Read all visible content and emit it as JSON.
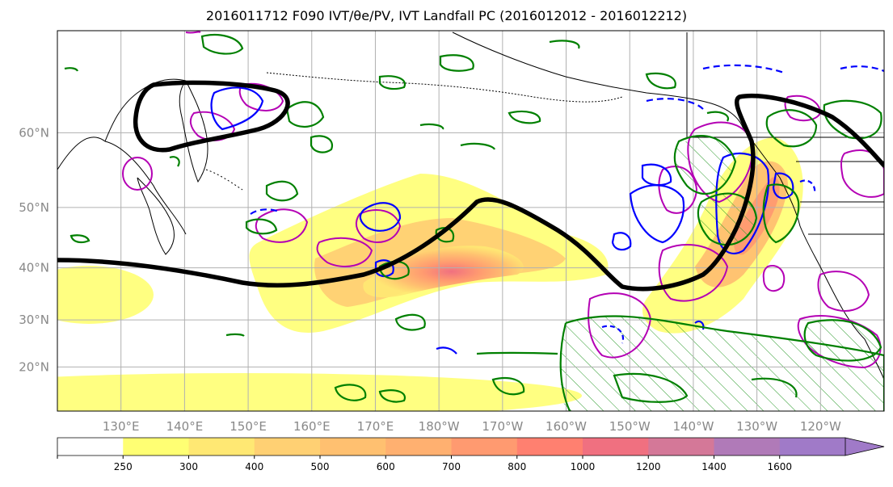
{
  "title": "2016011712 F090 IVT/θe/PV, IVT Landfall PC (2016012012 - 2016012212)",
  "map": {
    "lat_ticks": [
      "60°N",
      "50°N",
      "40°N",
      "30°N",
      "20°N"
    ],
    "lon_ticks": [
      "130°E",
      "140°E",
      "150°E",
      "160°E",
      "170°E",
      "180°W",
      "170°W",
      "160°W",
      "150°W",
      "140°W",
      "130°W",
      "120°W"
    ],
    "extent": {
      "lon_min": 120,
      "lon_max": 250,
      "lat_min": 10,
      "lat_max": 70
    },
    "colors": {
      "coast": "#000000",
      "pc_contour": "#000000",
      "theta_e": "#008000",
      "pv": "#0000ff",
      "ivt_anomaly": "#b400b4",
      "grid": "#b0b0b0"
    }
  },
  "colorbar": {
    "levels": [
      "250",
      "300",
      "400",
      "500",
      "600",
      "700",
      "800",
      "1000",
      "1200",
      "1400",
      "1600"
    ],
    "colors": [
      "#ffffff",
      "#ffff73",
      "#ffe873",
      "#ffd073",
      "#ffc070",
      "#ffb070",
      "#ff9a70",
      "#ff8070",
      "#f07080",
      "#d47898",
      "#b07ab8",
      "#a07ac8"
    ],
    "extend": "max"
  }
}
